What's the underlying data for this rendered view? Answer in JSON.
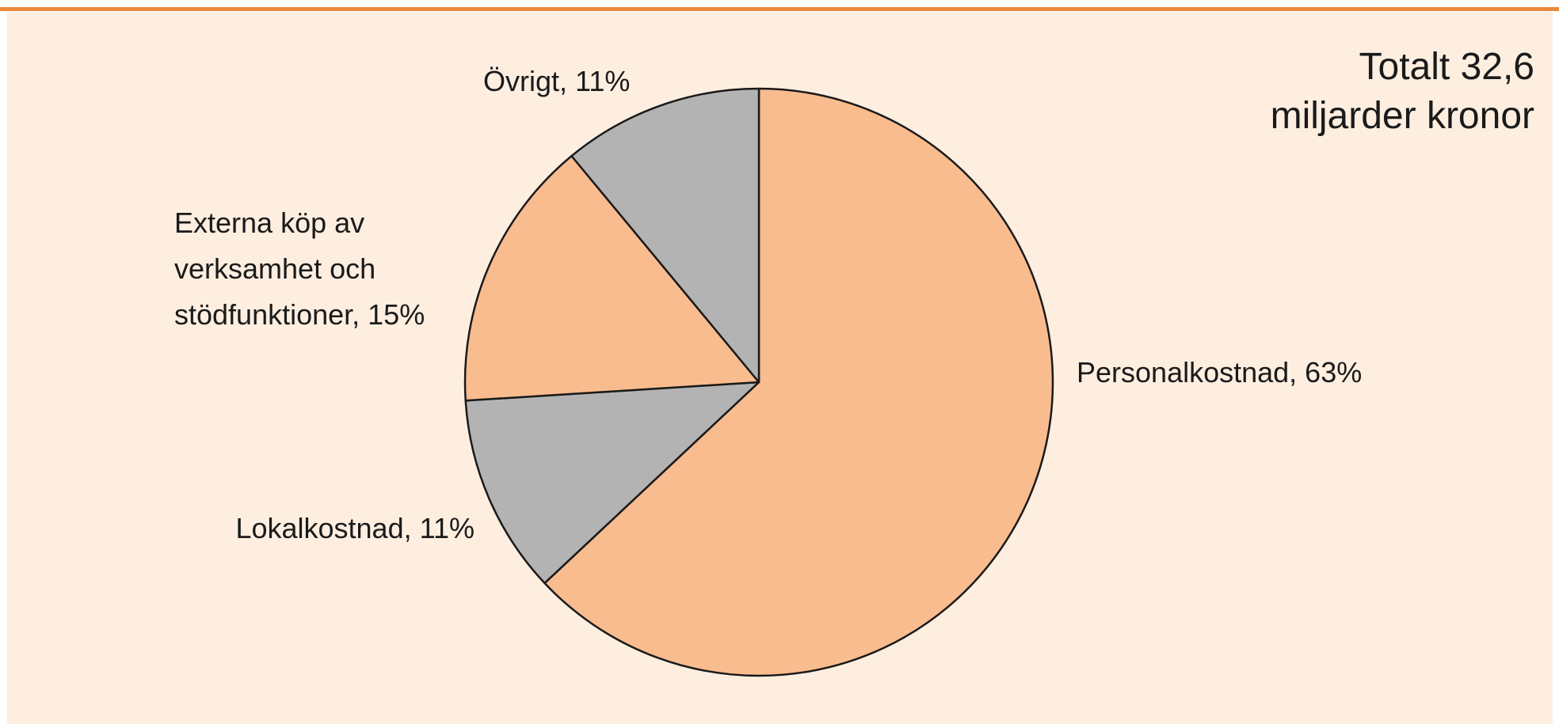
{
  "chart_data": {
    "type": "pie",
    "annotation": "Totalt 32,6 miljarder kronor",
    "categories": [
      "Personalkostnad, 63%",
      "Lokalkostnad, 11%",
      "Externa köp av verksamhet och stödfunktioner, 15%",
      "Övrigt, 11%"
    ],
    "values": [
      63,
      11,
      15,
      11
    ],
    "colors": [
      "#f9bc8f",
      "#b3b3b3",
      "#f9bc8f",
      "#b3b3b3"
    ]
  }
}
